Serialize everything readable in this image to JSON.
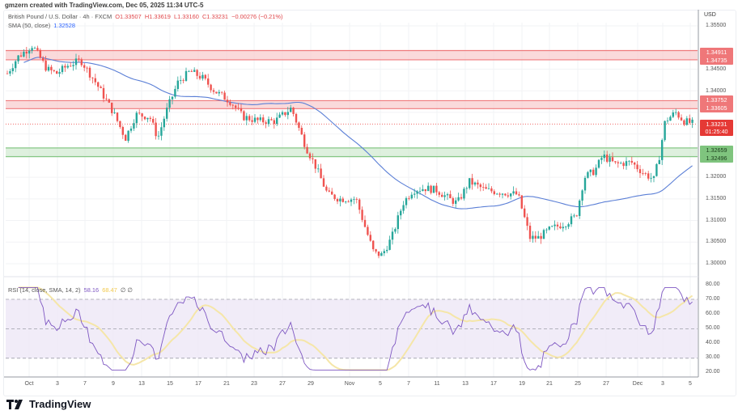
{
  "credit": "gmzern created with TradingView.com, Dec 05, 2025 11:34 UTC-5",
  "legend": {
    "symbol": "British Pound / U.S. Dollar · 4h · FXCM",
    "open": "O1.33507",
    "high": "H1.33619",
    "low": "L1.33160",
    "close": "C1.33231",
    "change": "−0.00276 (−0.21%)",
    "sma_label": "SMA (50, close)",
    "sma_value": "1.32528",
    "rsi_label": "RSI (14, close, SMA, 14, 2)",
    "rsi_value": "58.16",
    "rsi_ma_value": "68.47",
    "rsi_extra": "∅ ∅"
  },
  "price_axis": {
    "currency": "USD",
    "ticks": [
      "1.35500",
      "1.34500",
      "1.34000",
      "1.33500",
      "1.32000",
      "1.31500",
      "1.31000",
      "1.30500",
      "1.30000"
    ]
  },
  "badges": {
    "r1_top": "1.34911",
    "r1_bot": "1.34735",
    "r2_top": "1.33752",
    "r2_bot": "1.33605",
    "last": "1.33231",
    "countdown": "01:25:40",
    "s1_top": "1.32659",
    "s1_bot": "1.32496"
  },
  "rsi_axis": [
    "80.00",
    "70.00",
    "60.00",
    "50.00",
    "40.00",
    "30.00",
    "20.00"
  ],
  "x_axis": [
    "Oct",
    "3",
    "7",
    "9",
    "13",
    "15",
    "17",
    "21",
    "23",
    "27",
    "29",
    "Nov",
    "5",
    "7",
    "11",
    "13",
    "17",
    "19",
    "21",
    "25",
    "27",
    "Dec",
    "3",
    "5"
  ],
  "brand": "TradingView",
  "colors": {
    "up": "#26a69a",
    "down": "#ef5350",
    "sma": "#5b7fd6",
    "rsi": "#7e57c2",
    "rsi_ma": "#f5e6a8",
    "resistance_zone": "#f7c6c7",
    "support_zone": "#cde8cc"
  },
  "chart_data": [
    {
      "type": "candlestick",
      "title": "British Pound / U.S. Dollar · 4h · FXCM",
      "xlabel": "",
      "ylabel": "USD",
      "ylim": [
        1.2975,
        1.3565
      ],
      "x_ticks": [
        "Oct",
        "3",
        "7",
        "9",
        "13",
        "15",
        "17",
        "21",
        "23",
        "27",
        "29",
        "Nov",
        "5",
        "7",
        "11",
        "13",
        "17",
        "19",
        "21",
        "25",
        "27",
        "Dec",
        "3",
        "5"
      ],
      "ohlc_last": {
        "open": 1.33507,
        "high": 1.33619,
        "low": 1.3316,
        "close": 1.33231,
        "change": -0.00276,
        "change_pct": -0.21
      },
      "close_path_approx": [
        {
          "date": "Oct 1",
          "close": 1.344
        },
        {
          "date": "Oct 2",
          "close": 1.3475
        },
        {
          "date": "Oct 3",
          "close": 1.3455
        },
        {
          "date": "Oct 7",
          "close": 1.345
        },
        {
          "date": "Oct 9",
          "close": 1.332
        },
        {
          "date": "Oct 10",
          "close": 1.3285
        },
        {
          "date": "Oct 13",
          "close": 1.335
        },
        {
          "date": "Oct 15",
          "close": 1.3395
        },
        {
          "date": "Oct 17",
          "close": 1.344
        },
        {
          "date": "Oct 21",
          "close": 1.3385
        },
        {
          "date": "Oct 23",
          "close": 1.3335
        },
        {
          "date": "Oct 27",
          "close": 1.334
        },
        {
          "date": "Oct 28",
          "close": 1.336
        },
        {
          "date": "Oct 29",
          "close": 1.323
        },
        {
          "date": "Oct 30",
          "close": 1.3155
        },
        {
          "date": "Nov 3",
          "close": 1.314
        },
        {
          "date": "Nov 4",
          "close": 1.305
        },
        {
          "date": "Nov 5",
          "close": 1.3015
        },
        {
          "date": "Nov 7",
          "close": 1.314
        },
        {
          "date": "Nov 11",
          "close": 1.318
        },
        {
          "date": "Nov 13",
          "close": 1.316
        },
        {
          "date": "Nov 14",
          "close": 1.318
        },
        {
          "date": "Nov 17",
          "close": 1.317
        },
        {
          "date": "Nov 19",
          "close": 1.308
        },
        {
          "date": "Nov 20",
          "close": 1.3055
        },
        {
          "date": "Nov 21",
          "close": 1.309
        },
        {
          "date": "Nov 24",
          "close": 1.311
        },
        {
          "date": "Nov 25",
          "close": 1.318
        },
        {
          "date": "Nov 26",
          "close": 1.324
        },
        {
          "date": "Nov 27",
          "close": 1.323
        },
        {
          "date": "Nov 28",
          "close": 1.323
        },
        {
          "date": "Dec 1",
          "close": 1.321
        },
        {
          "date": "Dec 2",
          "close": 1.326
        },
        {
          "date": "Dec 3",
          "close": 1.334
        },
        {
          "date": "Dec 4",
          "close": 1.335
        },
        {
          "date": "Dec 5",
          "close": 1.33231
        }
      ],
      "sma50": {
        "label": "SMA (50, close)",
        "last": 1.32528
      },
      "zones": [
        {
          "type": "resistance",
          "top": 1.34911,
          "bottom": 1.34735
        },
        {
          "type": "resistance",
          "top": 1.33752,
          "bottom": 1.33605
        },
        {
          "type": "support",
          "top": 1.32659,
          "bottom": 1.32496
        }
      ],
      "last_price_line": 1.33231
    },
    {
      "type": "line",
      "title": "RSI (14, close, SMA, 14, 2)",
      "ylim": [
        20,
        80
      ],
      "y_ticks": [
        80,
        70,
        60,
        50,
        40,
        30,
        20
      ],
      "bands": {
        "upper": 70,
        "middle": 50,
        "lower": 30
      },
      "series": [
        {
          "name": "RSI",
          "last": 58.16
        },
        {
          "name": "RSI SMA",
          "last": 68.47
        }
      ]
    }
  ]
}
